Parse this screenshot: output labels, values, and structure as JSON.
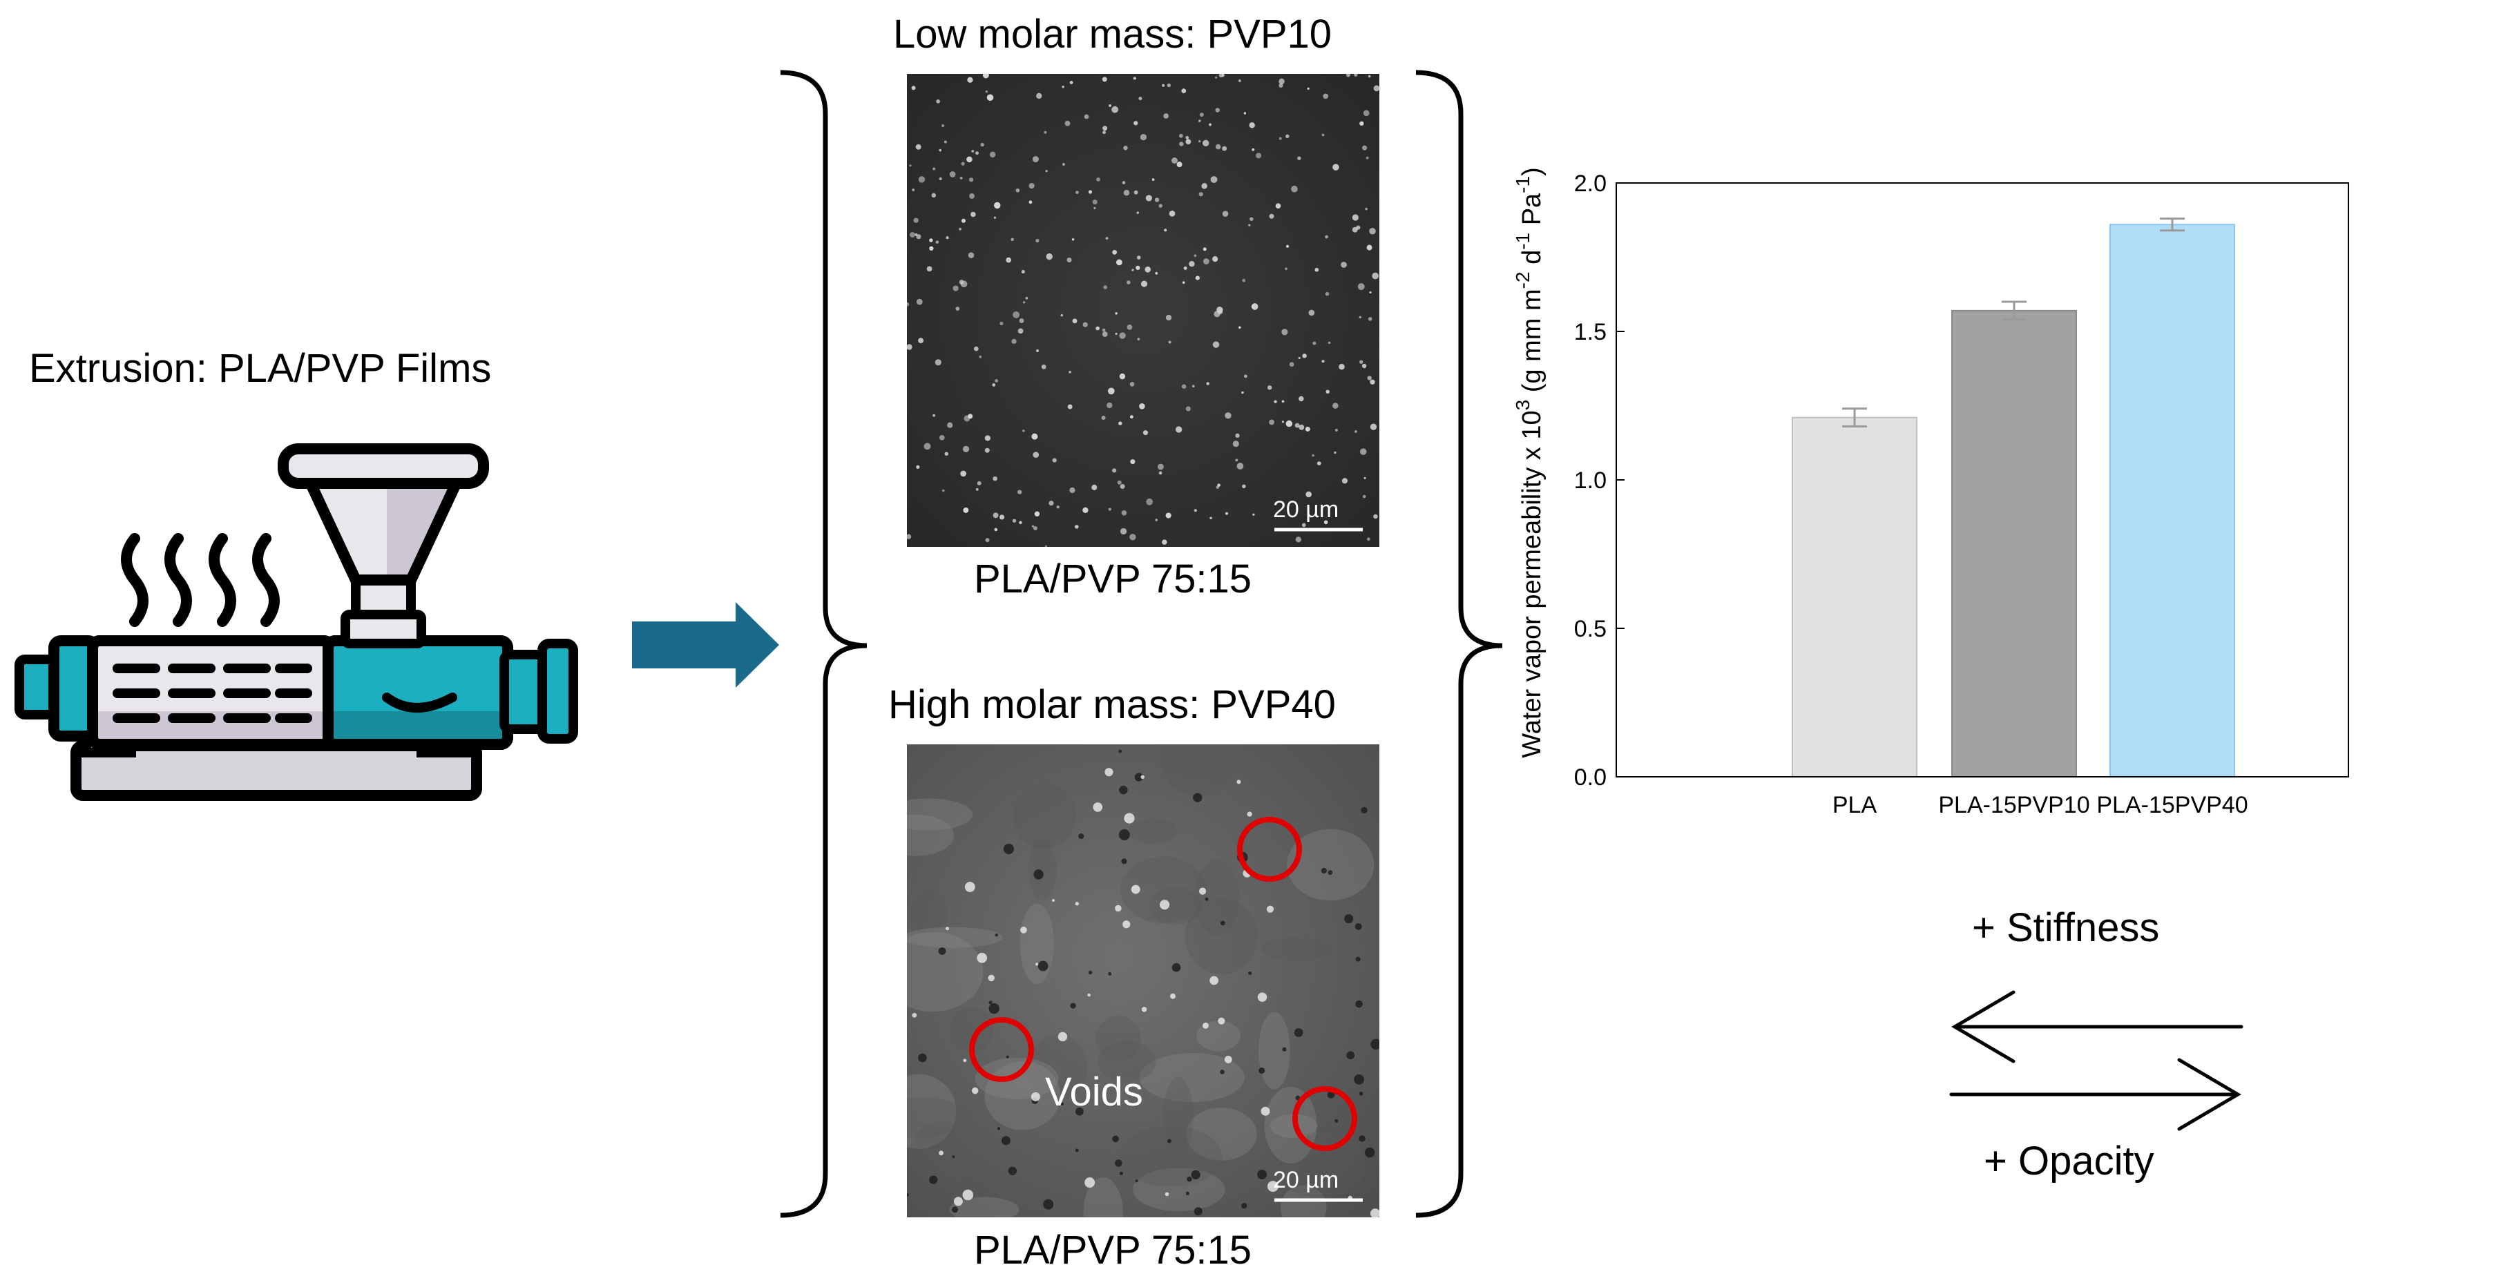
{
  "extrusion": {
    "title": "Extrusion: PLA/PVP Films"
  },
  "top_panel": {
    "heading": "Low molar mass: PVP10",
    "caption": "PLA/PVP 75:15",
    "scale_bar": "20 µm"
  },
  "bottom_panel": {
    "heading": "High molar mass: PVP40",
    "caption": "PLA/PVP 75:15",
    "scale_bar": "20 µm",
    "annotation": "Voids"
  },
  "properties": {
    "stiffness": "+ Stiffness",
    "opacity": "+ Opacity"
  },
  "colors": {
    "arrow": "#1a6a8c",
    "extruder_teal": "#1bafc0",
    "void_circle": "#e00000",
    "bar_pla": "#e2e2e2",
    "bar_pvp10": "#a2a2a2",
    "bar_pvp40": "#b0ddf8"
  },
  "chart_data": {
    "type": "bar",
    "ylabel_main": "Water vapor permeability x 10",
    "ylabel_exp": "3",
    "ylabel_units": [
      {
        "t": " (g mm m"
      },
      {
        "t": "-2",
        "sup": true
      },
      {
        "t": " d"
      },
      {
        "t": "-1",
        "sup": true
      },
      {
        "t": " Pa"
      },
      {
        "t": "-1",
        "sup": true
      },
      {
        "t": ")"
      }
    ],
    "categories": [
      "PLA",
      "PLA-15PVP10",
      "PLA-15PVP40"
    ],
    "values": [
      1.21,
      1.57,
      1.86
    ],
    "errors": [
      0.03,
      0.03,
      0.02
    ],
    "ylim": [
      0,
      2.0
    ],
    "yticks": [
      "0.0",
      "0.5",
      "1.0",
      "1.5",
      "2.0"
    ],
    "yticks_values": [
      0,
      0.5,
      1.0,
      1.5,
      2.0
    ],
    "grid": false
  }
}
